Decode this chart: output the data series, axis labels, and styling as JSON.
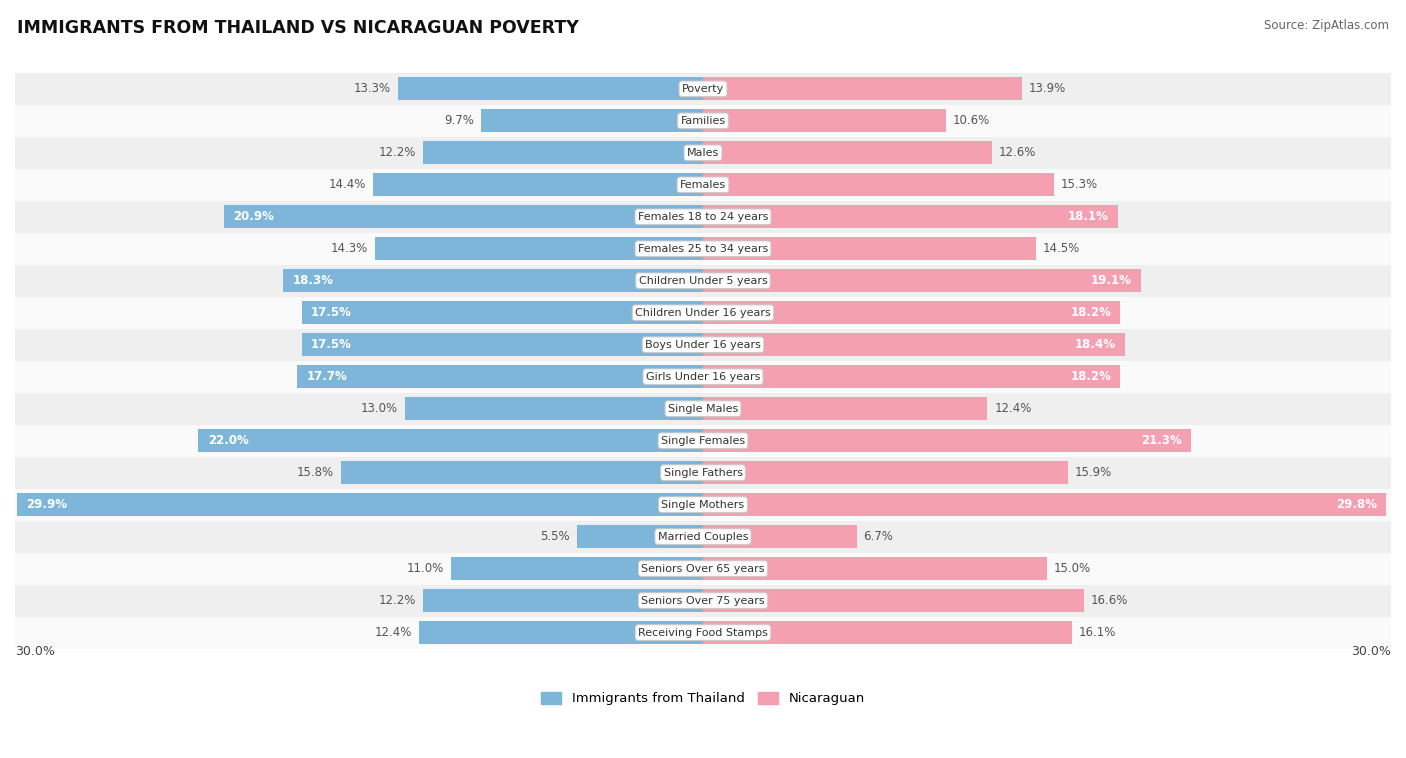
{
  "title": "IMMIGRANTS FROM THAILAND VS NICARAGUAN POVERTY",
  "source": "Source: ZipAtlas.com",
  "categories": [
    "Poverty",
    "Families",
    "Males",
    "Females",
    "Females 18 to 24 years",
    "Females 25 to 34 years",
    "Children Under 5 years",
    "Children Under 16 years",
    "Boys Under 16 years",
    "Girls Under 16 years",
    "Single Males",
    "Single Females",
    "Single Fathers",
    "Single Mothers",
    "Married Couples",
    "Seniors Over 65 years",
    "Seniors Over 75 years",
    "Receiving Food Stamps"
  ],
  "thailand_values": [
    13.3,
    9.7,
    12.2,
    14.4,
    20.9,
    14.3,
    18.3,
    17.5,
    17.5,
    17.7,
    13.0,
    22.0,
    15.8,
    29.9,
    5.5,
    11.0,
    12.2,
    12.4
  ],
  "nicaraguan_values": [
    13.9,
    10.6,
    12.6,
    15.3,
    18.1,
    14.5,
    19.1,
    18.2,
    18.4,
    18.2,
    12.4,
    21.3,
    15.9,
    29.8,
    6.7,
    15.0,
    16.6,
    16.1
  ],
  "thailand_color": "#7EB6D9",
  "nicaragua_color": "#F4A0B0",
  "label_color_dark": "#555555",
  "row_bg_even": "#efefef",
  "row_bg_odd": "#fafafa",
  "max_value": 30.0,
  "legend_thailand": "Immigrants from Thailand",
  "legend_nicaragua": "Nicaraguan",
  "white_label_threshold_th": 17.0,
  "white_label_threshold_ni": 17.0
}
